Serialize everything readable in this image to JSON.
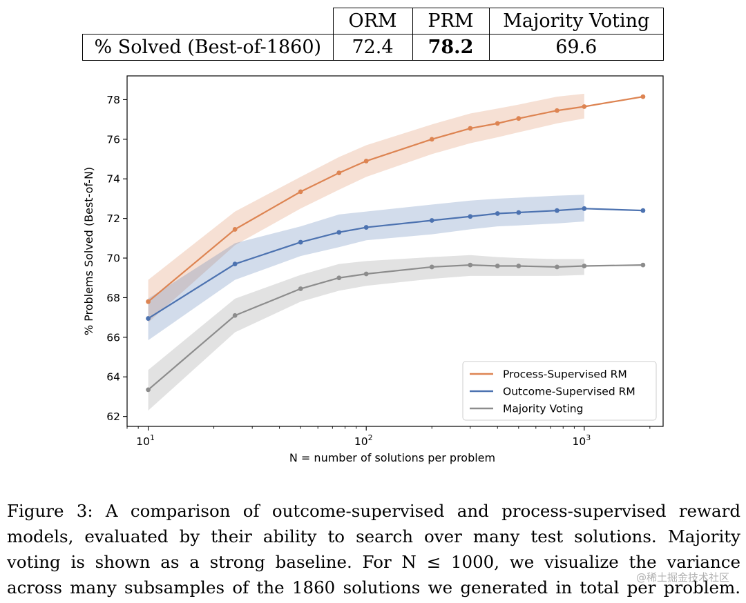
{
  "table": {
    "headers": [
      "",
      "ORM",
      "PRM",
      "Majority Voting"
    ],
    "row_label": "% Solved (Best-of-1860)",
    "values": [
      "72.4",
      "78.2",
      "69.6"
    ]
  },
  "chart_data": {
    "type": "line",
    "xlabel": "N = number of solutions per problem",
    "ylabel": "% Problems Solved (Best-of-N)",
    "xscale": "log",
    "xlim": [
      8,
      2300
    ],
    "ylim": [
      61.5,
      79.2
    ],
    "yticks": [
      62,
      64,
      66,
      68,
      70,
      72,
      74,
      76,
      78
    ],
    "xticks": [
      10,
      100,
      1000
    ],
    "xtick_labels": [
      {
        "base": "10",
        "exp": "1"
      },
      {
        "base": "10",
        "exp": "2"
      },
      {
        "base": "10",
        "exp": "3"
      }
    ],
    "legend_position": "lower-right",
    "x": [
      10,
      25,
      50,
      75,
      100,
      200,
      300,
      400,
      500,
      750,
      1000,
      1860
    ],
    "series": [
      {
        "name": "Process-Supervised RM",
        "color": "#DD8452",
        "values": [
          67.8,
          71.45,
          73.35,
          74.3,
          74.9,
          76.0,
          76.55,
          76.8,
          77.05,
          77.45,
          77.65,
          78.15
        ],
        "band_lower": [
          66.75,
          70.65,
          72.5,
          73.45,
          74.1,
          75.25,
          75.8,
          76.1,
          76.35,
          76.8,
          77.05
        ],
        "band_upper": [
          68.9,
          72.35,
          74.1,
          75.1,
          75.7,
          76.75,
          77.3,
          77.55,
          77.75,
          78.15,
          78.3
        ]
      },
      {
        "name": "Outcome-Supervised RM",
        "color": "#4C72B0",
        "values": [
          66.95,
          69.7,
          70.8,
          71.3,
          71.55,
          71.9,
          72.1,
          72.25,
          72.3,
          72.4,
          72.5,
          72.4
        ],
        "band_lower": [
          65.85,
          68.9,
          70.1,
          70.55,
          70.9,
          71.2,
          71.45,
          71.6,
          71.65,
          71.75,
          71.85
        ],
        "band_upper": [
          67.95,
          70.75,
          71.6,
          72.2,
          72.35,
          72.7,
          72.9,
          73.0,
          73.05,
          73.15,
          73.2
        ]
      },
      {
        "name": "Majority Voting",
        "color": "#8C8C8C",
        "values": [
          63.35,
          67.1,
          68.45,
          69.0,
          69.2,
          69.55,
          69.65,
          69.6,
          69.6,
          69.55,
          69.6,
          69.65
        ],
        "band_lower": [
          62.3,
          66.25,
          67.8,
          68.35,
          68.6,
          68.95,
          69.1,
          69.1,
          69.1,
          69.1,
          69.15
        ],
        "band_upper": [
          64.35,
          67.95,
          69.15,
          69.7,
          69.85,
          70.05,
          70.15,
          70.05,
          70.0,
          69.95,
          69.95
        ]
      }
    ]
  },
  "caption": [
    "Figure 3:  A comparison of outcome-supervised and process-supervised reward",
    "models, evaluated by their ability to search over many test solutions. Majority",
    "voting is shown as a strong baseline.  For N ≤ 1000, we visualize the variance",
    "across many subsamples of the 1860 solutions we generated in total per problem."
  ],
  "watermark": "@稀土掘金技术社区"
}
